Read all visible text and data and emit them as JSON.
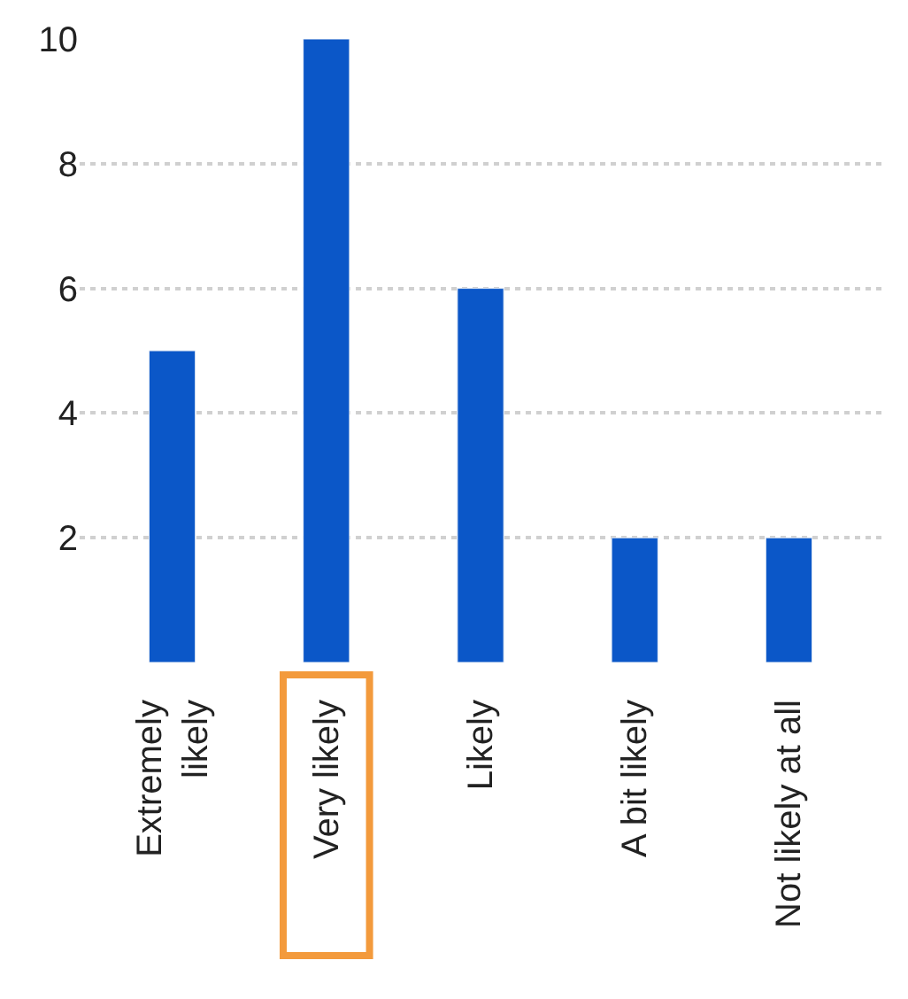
{
  "chart_data": {
    "type": "bar",
    "categories": [
      "Extremely\nlikely",
      "Very likely",
      "Likely",
      "A bit likely",
      "Not likely at all"
    ],
    "values": [
      5,
      10,
      6,
      2,
      2
    ],
    "color": "#0b57c8",
    "ylim": [
      0,
      10
    ],
    "yticks": [
      2,
      4,
      6,
      8,
      10
    ],
    "grid": "y"
  }
}
